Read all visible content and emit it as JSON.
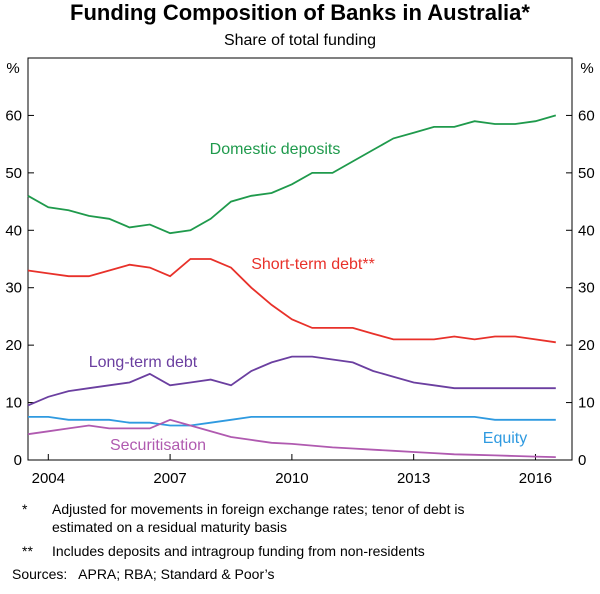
{
  "chart_data": {
    "type": "line",
    "title": "Funding Composition of Banks in Australia*",
    "subtitle": "Share of total funding",
    "y_unit": "%",
    "x": [
      2003.5,
      2004,
      2004.5,
      2005,
      2005.5,
      2006,
      2006.5,
      2007,
      2007.5,
      2008,
      2008.5,
      2009,
      2009.5,
      2010,
      2010.5,
      2011,
      2011.5,
      2012,
      2012.5,
      2013,
      2013.5,
      2014,
      2014.5,
      2015,
      2015.5,
      2016,
      2016.5
    ],
    "xlim": [
      2003.5,
      2016.9
    ],
    "xticks": [
      2004,
      2007,
      2010,
      2013,
      2016
    ],
    "ylim": [
      0,
      70
    ],
    "yticks": [
      0,
      10,
      20,
      30,
      40,
      50,
      60
    ],
    "series": [
      {
        "name": "Domestic deposits",
        "color": "#1f9a4c",
        "values": [
          46,
          44,
          43.5,
          42.5,
          42,
          40.5,
          41,
          39.5,
          40,
          42,
          45,
          46,
          46.5,
          48,
          50,
          50,
          52,
          54,
          56,
          57,
          58,
          58,
          59,
          58.5,
          58.5,
          59,
          60
        ]
      },
      {
        "name": "Short-term debt**",
        "color": "#e8312a",
        "values": [
          33,
          32.5,
          32,
          32,
          33,
          34,
          33.5,
          32,
          35,
          35,
          33.5,
          30,
          27,
          24.5,
          23,
          23,
          23,
          22,
          21,
          21,
          21,
          21.5,
          21,
          21.5,
          21.5,
          21,
          20.5
        ]
      },
      {
        "name": "Long-term debt",
        "color": "#6b3fa0",
        "values": [
          9.5,
          11,
          12,
          12.5,
          13,
          13.5,
          15,
          13,
          13.5,
          14,
          13,
          15.5,
          17,
          18,
          18,
          17.5,
          17,
          15.5,
          14.5,
          13.5,
          13,
          12.5,
          12.5,
          12.5,
          12.5,
          12.5,
          12.5
        ]
      },
      {
        "name": "Equity",
        "color": "#2f9ae0",
        "values": [
          7.5,
          7.5,
          7,
          7,
          7,
          6.5,
          6.5,
          6,
          6,
          6.5,
          7,
          7.5,
          7.5,
          7.5,
          7.5,
          7.5,
          7.5,
          7.5,
          7.5,
          7.5,
          7.5,
          7.5,
          7.5,
          7,
          7,
          7,
          7
        ]
      },
      {
        "name": "Securitisation",
        "color": "#b05ab0",
        "values": [
          4.5,
          5,
          5.5,
          6,
          5.5,
          5.5,
          5.5,
          7,
          6,
          5,
          4,
          3.5,
          3,
          2.8,
          2.5,
          2.2,
          2,
          1.8,
          1.6,
          1.4,
          1.2,
          1,
          0.9,
          0.8,
          0.7,
          0.6,
          0.5
        ]
      }
    ],
    "notes": [
      {
        "marker": "*",
        "text": "Adjusted for movements in foreign exchange rates; tenor of debt is estimated on a residual maturity basis"
      },
      {
        "marker": "**",
        "text": "Includes deposits and intragroup funding from non-residents"
      }
    ],
    "sources": "Sources:   APRA; RBA; Standard & Poor’s"
  }
}
